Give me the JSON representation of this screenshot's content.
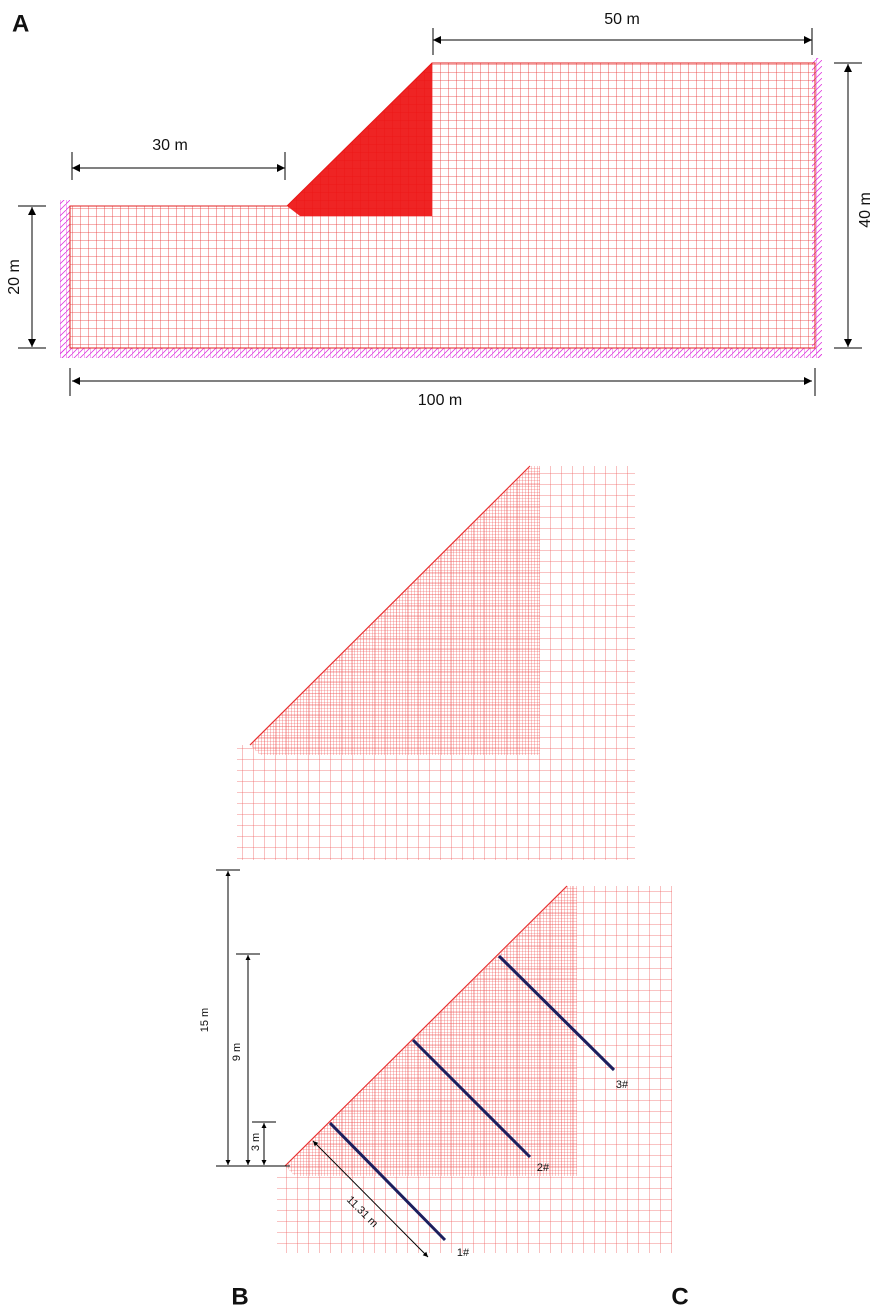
{
  "panels": {
    "a": {
      "label": "A",
      "dimensions": [
        "50 m",
        "30 m",
        "20 m",
        "40 m",
        "100 m"
      ]
    },
    "b": {
      "label": "B"
    },
    "c": {
      "label": "C",
      "dimensions": [
        "15 m",
        "9 m",
        "3 m",
        "11.31 m"
      ],
      "anchors": [
        "1#",
        "2#",
        "3#"
      ]
    }
  }
}
